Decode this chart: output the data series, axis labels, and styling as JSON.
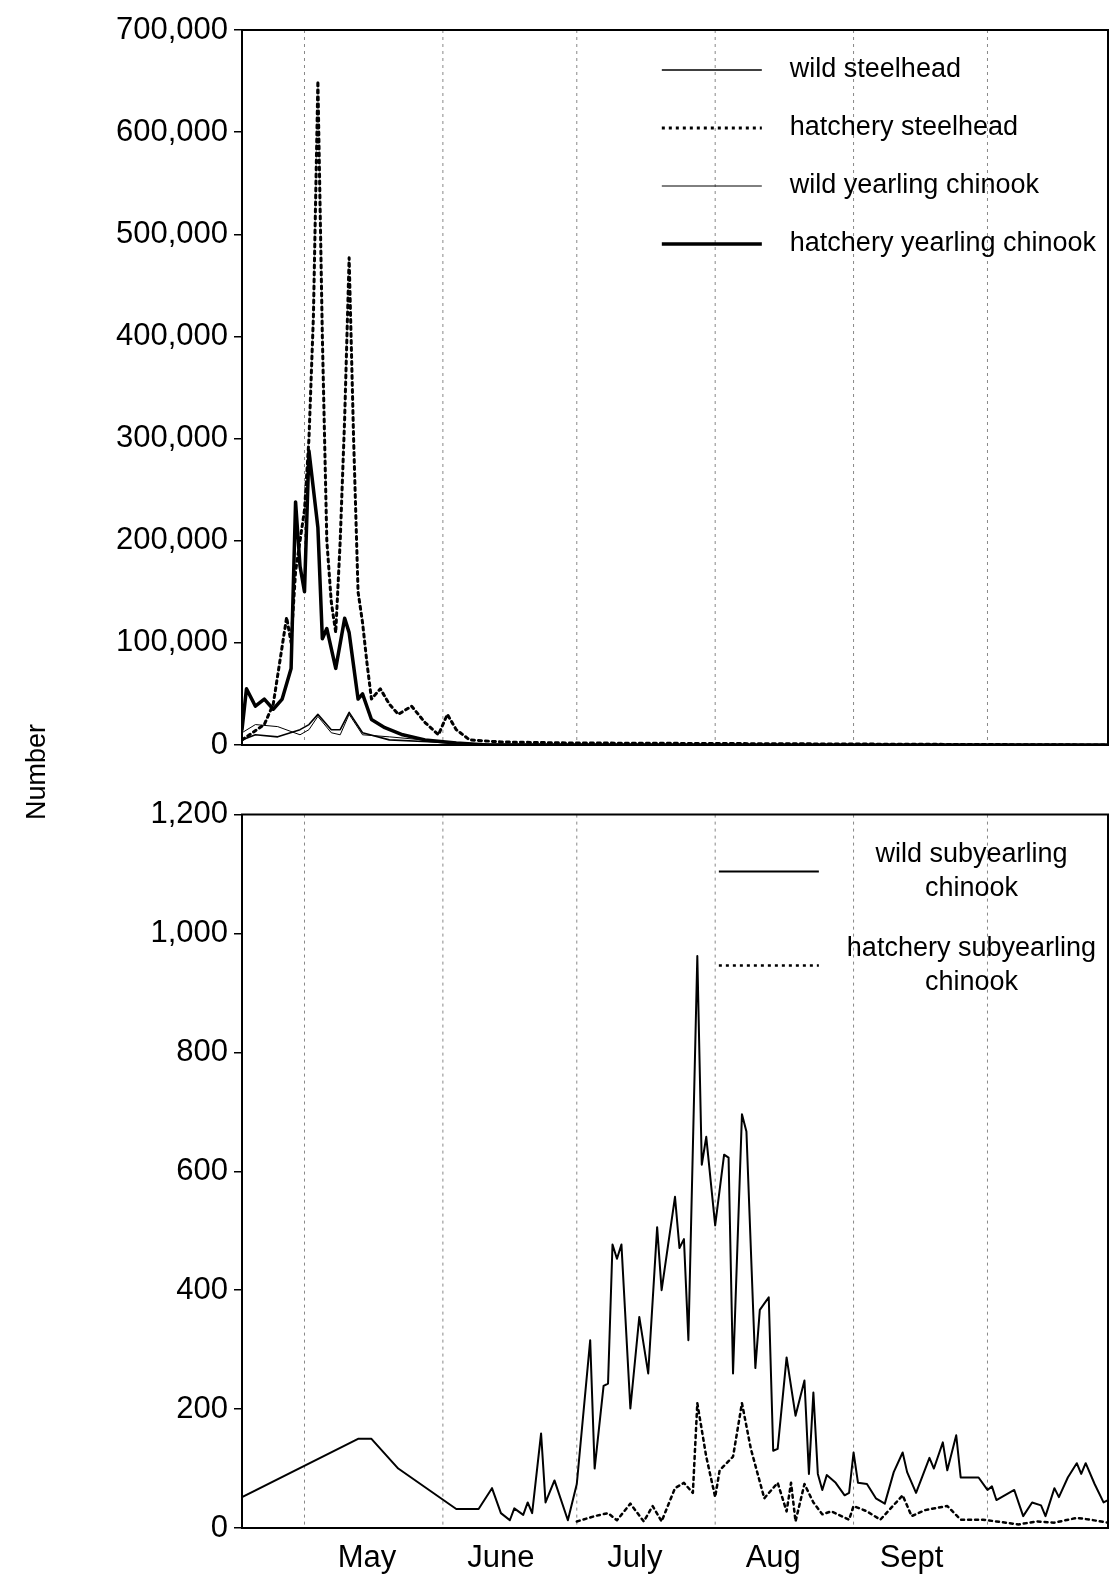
{
  "chart_data": [
    {
      "type": "line",
      "ylabel": "Number",
      "xlim": [
        "--04-17",
        "--10-28"
      ],
      "ylim": [
        0,
        700000
      ],
      "yticks": [
        0,
        {
          "value": 100000,
          "label": "100,000"
        },
        {
          "value": 200000,
          "label": "200,000"
        },
        {
          "value": 300000,
          "label": "300,000"
        },
        {
          "value": 400000,
          "label": "400,000"
        },
        {
          "value": 500000,
          "label": "500,000"
        },
        {
          "value": 600000,
          "label": "600,000"
        },
        {
          "value": 700000,
          "label": "700,000"
        }
      ],
      "tick_labels": "y",
      "grid": false,
      "legend": "top right",
      "marker": "none",
      "ref_lines": [
        {
          "axis": "x",
          "value": "--05-01",
          "color": "#888888",
          "line_style": "dotted"
        },
        {
          "axis": "x",
          "value": "--06-01",
          "color": "#888888",
          "line_style": "dotted"
        },
        {
          "axis": "x",
          "value": "--07-01",
          "color": "#888888",
          "line_style": "dotted"
        },
        {
          "axis": "x",
          "value": "--08-01",
          "color": "#888888",
          "line_style": "dotted"
        },
        {
          "axis": "x",
          "value": "--09-01",
          "color": "#888888",
          "line_style": "dotted"
        },
        {
          "axis": "x",
          "value": "--10-01",
          "color": "#888888",
          "line_style": "dotted"
        }
      ],
      "series": [
        {
          "name": "wild steelhead",
          "color": "#000000",
          "line_style": "solid",
          "x": [
            "--04-17",
            "--04-20",
            "--04-25",
            "--04-30",
            "--05-02",
            "--05-04",
            "--05-07",
            "--05-09",
            "--05-11",
            "--05-14",
            "--05-20",
            "--05-30",
            "--06-09",
            "--10-28"
          ],
          "values": [
            5000,
            10000,
            8000,
            15000,
            20000,
            30000,
            15000,
            15000,
            32000,
            12000,
            5000,
            3000,
            0,
            0
          ]
        },
        {
          "name": "hatchery steelhead",
          "color": "#000000",
          "line_style": "dotted",
          "x": [
            "--04-17",
            "--04-22",
            "--04-24",
            "--04-27",
            "--04-28",
            "--04-29",
            "--04-30",
            "--05-01",
            "--05-02",
            "--05-03",
            "--05-04",
            "--05-05",
            "--05-06",
            "--05-07",
            "--05-08",
            "--05-09",
            "--05-10",
            "--05-11",
            "--05-12",
            "--05-13",
            "--05-14",
            "--05-15",
            "--05-16",
            "--05-18",
            "--05-20",
            "--05-22",
            "--05-25",
            "--05-28",
            "--05-31",
            "--06-02",
            "--06-04",
            "--06-07",
            "--06-14",
            "--06-29",
            "--10-28"
          ],
          "values": [
            5000,
            20000,
            40000,
            125000,
            100000,
            170000,
            200000,
            230000,
            300000,
            420000,
            650000,
            400000,
            200000,
            140000,
            110000,
            200000,
            320000,
            477000,
            300000,
            150000,
            120000,
            80000,
            45000,
            55000,
            40000,
            30000,
            38000,
            22000,
            10000,
            30000,
            15000,
            5000,
            3000,
            2000,
            0
          ]
        },
        {
          "name": "wild yearling chinook",
          "color": "#000000",
          "line_style": "solid",
          "x": [
            "--04-17",
            "--04-20",
            "--04-25",
            "--04-30",
            "--05-02",
            "--05-04",
            "--05-07",
            "--05-09",
            "--05-11",
            "--05-14",
            "--05-20",
            "--05-30",
            "--06-09",
            "--10-28"
          ],
          "values": [
            12000,
            20000,
            18000,
            10000,
            15000,
            28000,
            12000,
            10000,
            30000,
            10000,
            8000,
            4000,
            1000,
            0
          ]
        },
        {
          "name": "hatchery yearling chinook",
          "color": "#000000",
          "line_style": "solid",
          "x": [
            "--04-17",
            "--04-18",
            "--04-20",
            "--04-22",
            "--04-24",
            "--04-26",
            "--04-28",
            "--04-29",
            "--04-30",
            "--05-01",
            "--05-02",
            "--05-04",
            "--05-05",
            "--05-06",
            "--05-08",
            "--05-10",
            "--05-11",
            "--05-13",
            "--05-14",
            "--05-16",
            "--05-19",
            "--05-23",
            "--05-28",
            "--06-04",
            "--06-11",
            "--10-28"
          ],
          "values": [
            15000,
            55000,
            38000,
            45000,
            35000,
            45000,
            75000,
            238000,
            175000,
            150000,
            288000,
            213000,
            104000,
            114000,
            75000,
            124000,
            110000,
            45000,
            50000,
            25000,
            17000,
            10000,
            5000,
            2000,
            0,
            0
          ]
        }
      ]
    },
    {
      "type": "line",
      "xlim": [
        "--04-17",
        "--10-28"
      ],
      "ylim": [
        0,
        1200
      ],
      "xticks": [
        {
          "value": "--05-15",
          "label": "May"
        },
        {
          "value": "--06-14",
          "label": "June"
        },
        {
          "value": "--07-14",
          "label": "July"
        },
        {
          "value": "--08-14",
          "label": "Aug"
        },
        {
          "value": "--09-14",
          "label": "Sept"
        }
      ],
      "yticks": [
        0,
        200,
        400,
        600,
        800,
        {
          "value": 1000,
          "label": "1,000"
        },
        {
          "value": 1200,
          "label": "1,200"
        }
      ],
      "grid": false,
      "legend": "top right",
      "marker": "none",
      "ref_lines": [
        {
          "axis": "x",
          "value": "--05-01",
          "color": "#888888",
          "line_style": "dotted"
        },
        {
          "axis": "x",
          "value": "--06-01",
          "color": "#888888",
          "line_style": "dotted"
        },
        {
          "axis": "x",
          "value": "--07-01",
          "color": "#888888",
          "line_style": "dotted"
        },
        {
          "axis": "x",
          "value": "--08-01",
          "color": "#888888",
          "line_style": "dotted"
        },
        {
          "axis": "x",
          "value": "--09-01",
          "color": "#888888",
          "line_style": "dotted"
        },
        {
          "axis": "x",
          "value": "--10-01",
          "color": "#888888",
          "line_style": "dotted"
        }
      ],
      "series": [
        {
          "name": "wild subyearling chinook",
          "color": "#000000",
          "line_style": "solid",
          "x": [
            "--04-17",
            "--05-13",
            "--05-16",
            "--05-22",
            "--06-04",
            "--06-09",
            "--06-12",
            "--06-14",
            "--06-16",
            "--06-17",
            "--06-19",
            "--06-20",
            "--06-21",
            "--06-23",
            "--06-24",
            "--06-26",
            "--06-29",
            "--07-01",
            "--07-04",
            "--07-05",
            "--07-07",
            "--07-08",
            "--07-09",
            "--07-10",
            "--07-11",
            "--07-13",
            "--07-15",
            "--07-17",
            "--07-19",
            "--07-20",
            "--07-23",
            "--07-24",
            "--07-25",
            "--07-26",
            "--07-28",
            "--07-29",
            "--07-30",
            "--08-01",
            "--08-03",
            "--08-04",
            "--08-05",
            "--08-07",
            "--08-08",
            "--08-10",
            "--08-11",
            "--08-13",
            "--08-14",
            "--08-15",
            "--08-17",
            "--08-19",
            "--08-21",
            "--08-22",
            "--08-23",
            "--08-24",
            "--08-25",
            "--08-26",
            "--08-28",
            "--08-30",
            "--08-31",
            "--09-01",
            "--09-02",
            "--09-04",
            "--09-06",
            "--09-08",
            "--09-10",
            "--09-12",
            "--09-13",
            "--09-15",
            "--09-18",
            "--09-19",
            "--09-21",
            "--09-22",
            "--09-24",
            "--09-25",
            "--09-29",
            "--10-01",
            "--10-02",
            "--10-03",
            "--10-07",
            "--10-09",
            "--10-11",
            "--10-13",
            "--10-14",
            "--10-16",
            "--10-17",
            "--10-19",
            "--10-21",
            "--10-22",
            "--10-23",
            "--10-25",
            "--10-27",
            "--10-28"
          ],
          "values": [
            52,
            150,
            150,
            100,
            32,
            32,
            67,
            25,
            13,
            33,
            22,
            43,
            25,
            159,
            43,
            80,
            13,
            74,
            316,
            100,
            239,
            243,
            477,
            453,
            477,
            201,
            355,
            260,
            506,
            400,
            557,
            471,
            486,
            316,
            962,
            611,
            658,
            509,
            628,
            623,
            260,
            696,
            667,
            269,
            367,
            388,
            130,
            133,
            287,
            189,
            248,
            91,
            228,
            91,
            64,
            89,
            76,
            55,
            59,
            127,
            76,
            74,
            50,
            41,
            94,
            127,
            94,
            59,
            118,
            100,
            144,
            97,
            156,
            85,
            85,
            64,
            70,
            47,
            64,
            20,
            43,
            38,
            20,
            67,
            52,
            85,
            109,
            91,
            109,
            74,
            43,
            47
          ]
        },
        {
          "name": "hatchery subyearling chinook",
          "color": "#000000",
          "line_style": "dotted",
          "x": [
            "--07-01",
            "--07-05",
            "--07-08",
            "--07-10",
            "--07-13",
            "--07-16",
            "--07-18",
            "--07-20",
            "--07-23",
            "--07-25",
            "--07-27",
            "--07-28",
            "--07-30",
            "--08-01",
            "--08-02",
            "--08-05",
            "--08-07",
            "--08-09",
            "--08-12",
            "--08-15",
            "--08-17",
            "--08-18",
            "--08-19",
            "--08-21",
            "--08-23",
            "--08-25",
            "--08-27",
            "--08-31",
            "--09-01",
            "--09-04",
            "--09-07",
            "--09-12",
            "--09-14",
            "--09-17",
            "--09-22",
            "--09-25",
            "--09-30",
            "--10-03",
            "--10-08",
            "--10-12",
            "--10-16",
            "--10-21",
            "--10-24",
            "--10-28"
          ],
          "values": [
            11,
            20,
            25,
            13,
            41,
            11,
            37,
            11,
            67,
            76,
            59,
            210,
            120,
            52,
            97,
            120,
            210,
            133,
            50,
            76,
            28,
            76,
            11,
            74,
            43,
            23,
            28,
            14,
            37,
            28,
            14,
            55,
            20,
            30,
            37,
            14,
            14,
            11,
            6,
            11,
            9,
            17,
            14,
            9
          ]
        }
      ]
    }
  ]
}
